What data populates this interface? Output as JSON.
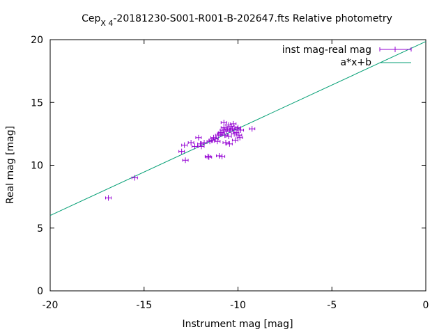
{
  "chart_data": {
    "type": "scatter",
    "title": {
      "prefix": "Cep",
      "subscript": "X 4",
      "suffix": "-20181230-S001-R001-B-202647.fts Relative photometry"
    },
    "xlabel": "Instrument mag [mag]",
    "ylabel": "Real mag [mag]",
    "xlim": [
      -20,
      0
    ],
    "ylim": [
      0,
      20
    ],
    "x_ticks": [
      -20,
      -15,
      -10,
      -5,
      0
    ],
    "y_ticks": [
      0,
      5,
      10,
      15,
      20
    ],
    "x_tick_labels": [
      "-20",
      "-15",
      "-10",
      "-5",
      "0"
    ],
    "y_tick_labels": [
      "0",
      "5",
      "10",
      "15",
      "20"
    ],
    "grid": false,
    "legend_position": "top-right",
    "series": [
      {
        "name": "inst mag-real mag",
        "kind": "points-with-xerror",
        "color": "#9400d3",
        "points": [
          [
            -16.9,
            7.4
          ],
          [
            -15.5,
            9.0
          ],
          [
            -13.0,
            11.1
          ],
          [
            -12.85,
            11.6
          ],
          [
            -12.8,
            10.4
          ],
          [
            -12.5,
            11.8
          ],
          [
            -12.3,
            11.5
          ],
          [
            -12.1,
            12.2
          ],
          [
            -12.0,
            11.7
          ],
          [
            -11.95,
            11.5
          ],
          [
            -11.8,
            11.8
          ],
          [
            -11.6,
            10.7
          ],
          [
            -11.55,
            10.65
          ],
          [
            -11.5,
            11.9
          ],
          [
            -11.4,
            12.0
          ],
          [
            -11.3,
            12.2
          ],
          [
            -11.2,
            12.1
          ],
          [
            -11.1,
            11.9
          ],
          [
            -11.05,
            12.4
          ],
          [
            -11.0,
            10.75
          ],
          [
            -10.95,
            12.5
          ],
          [
            -10.9,
            12.6
          ],
          [
            -10.85,
            10.7
          ],
          [
            -10.8,
            12.8
          ],
          [
            -10.75,
            13.0
          ],
          [
            -10.75,
            13.4
          ],
          [
            -10.7,
            12.4
          ],
          [
            -10.65,
            11.8
          ],
          [
            -10.6,
            12.7
          ],
          [
            -10.55,
            12.9
          ],
          [
            -10.5,
            13.2
          ],
          [
            -10.5,
            12.3
          ],
          [
            -10.45,
            11.7
          ],
          [
            -10.4,
            12.8
          ],
          [
            -10.35,
            13.1
          ],
          [
            -10.3,
            12.9
          ],
          [
            -10.25,
            13.3
          ],
          [
            -10.2,
            12.5
          ],
          [
            -10.15,
            12.0
          ],
          [
            -10.1,
            12.6
          ],
          [
            -10.05,
            12.9
          ],
          [
            -10.0,
            13.0
          ],
          [
            -9.95,
            12.4
          ],
          [
            -9.9,
            12.2
          ],
          [
            -9.85,
            12.8
          ],
          [
            -9.25,
            12.9
          ]
        ]
      },
      {
        "name": "a*x+b",
        "kind": "line",
        "color": "#009e73",
        "endpoints": [
          [
            -20,
            6.0
          ],
          [
            0,
            19.85
          ]
        ]
      }
    ]
  }
}
